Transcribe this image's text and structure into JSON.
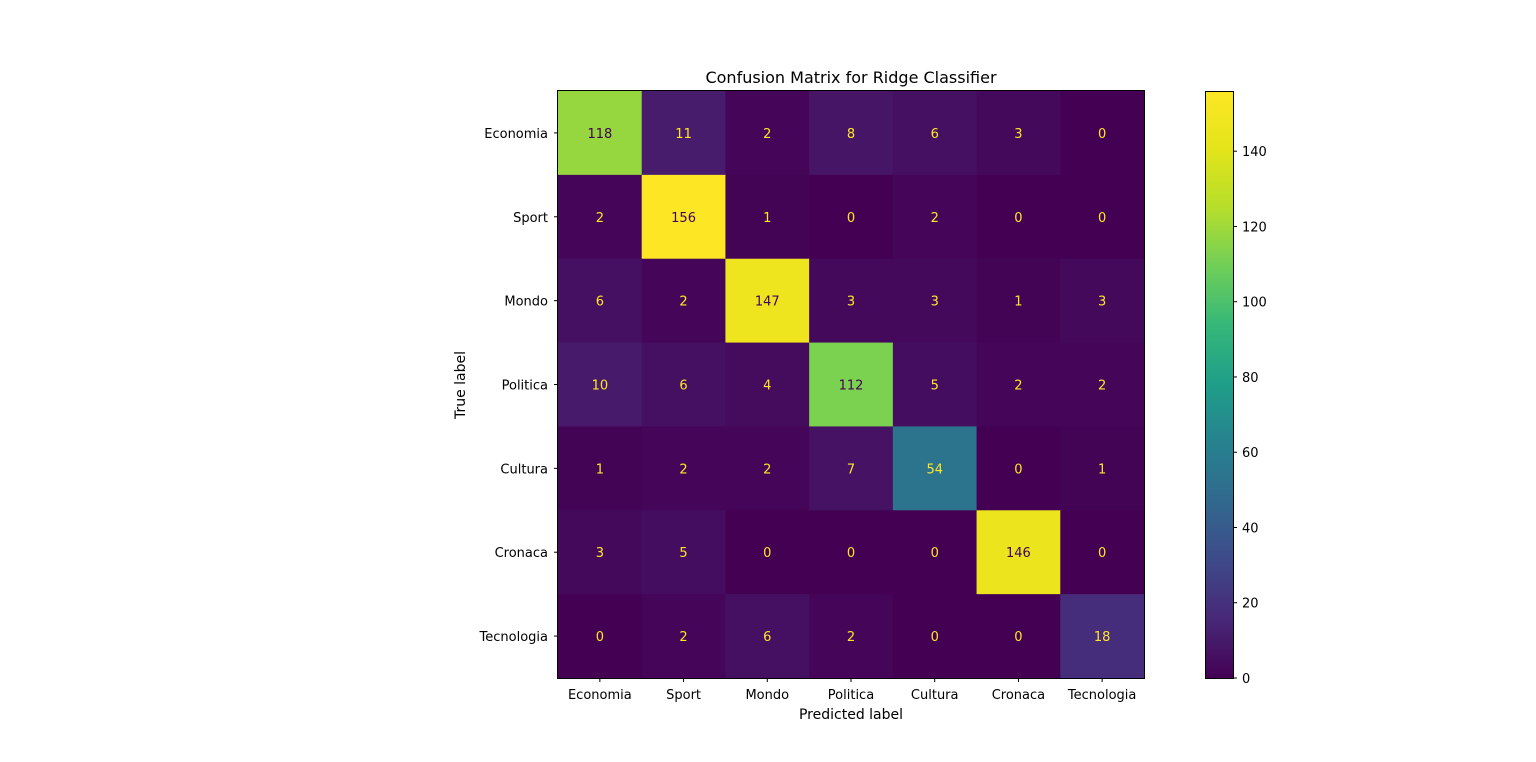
{
  "chart_data": {
    "type": "heatmap",
    "title": "Confusion Matrix for Ridge Classifier",
    "xlabel": "Predicted label",
    "ylabel": "True label",
    "x_categories": [
      "Economia",
      "Sport",
      "Mondo",
      "Politica",
      "Cultura",
      "Cronaca",
      "Tecnologia"
    ],
    "y_categories": [
      "Economia",
      "Sport",
      "Mondo",
      "Politica",
      "Cultura",
      "Cronaca",
      "Tecnologia"
    ],
    "values": [
      [
        118,
        11,
        2,
        8,
        6,
        3,
        0
      ],
      [
        2,
        156,
        1,
        0,
        2,
        0,
        0
      ],
      [
        6,
        2,
        147,
        3,
        3,
        1,
        3
      ],
      [
        10,
        6,
        4,
        112,
        5,
        2,
        2
      ],
      [
        1,
        2,
        2,
        7,
        54,
        0,
        1
      ],
      [
        3,
        5,
        0,
        0,
        0,
        146,
        0
      ],
      [
        0,
        2,
        6,
        2,
        0,
        0,
        18
      ]
    ],
    "colormap": "viridis",
    "colorbar": {
      "range": [
        0,
        156
      ],
      "ticks": [
        0,
        20,
        40,
        60,
        80,
        100,
        120,
        140
      ]
    },
    "text_colors": {
      "dark_cells": "#fde725",
      "light_cells": "#440154"
    }
  }
}
